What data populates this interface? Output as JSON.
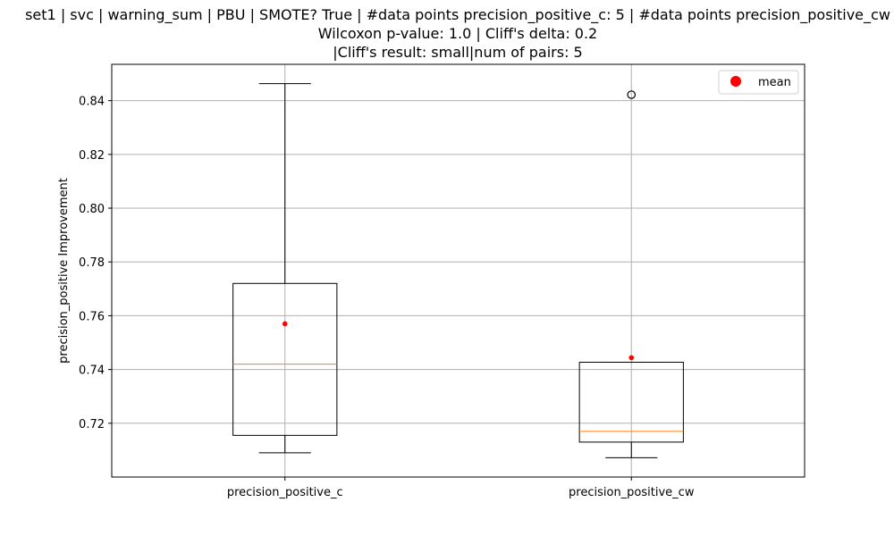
{
  "chart_data": {
    "type": "box",
    "title_lines": [
      "set1 | svc | warning_sum | PBU | SMOTE? True | #data points precision_positive_c: 5 | #data points precision_positive_cw",
      "Wilcoxon p-value: 1.0 | Cliff's delta: 0.2",
      "|Cliff's result: small|num of pairs: 5"
    ],
    "ylabel": "precision_positive Improvement",
    "xlabel": "",
    "ylim": [
      0.7,
      0.8535
    ],
    "yticks": [
      0.72,
      0.74,
      0.76,
      0.78,
      0.8,
      0.82,
      0.84
    ],
    "ytick_labels": [
      "0.72",
      "0.74",
      "0.76",
      "0.78",
      "0.80",
      "0.82",
      "0.84"
    ],
    "grid": true,
    "legend": {
      "placement": "top-right",
      "entries": [
        {
          "label": "mean",
          "color": "#ff0000",
          "marker": "circle"
        }
      ]
    },
    "boxes": [
      {
        "label": "precision_positive_c",
        "whisker_low": 0.709,
        "q1": 0.7155,
        "median": 0.742,
        "q3": 0.772,
        "whisker_high": 0.8463,
        "mean": 0.757,
        "outliers": []
      },
      {
        "label": "precision_positive_cw",
        "whisker_low": 0.7072,
        "q1": 0.713,
        "median": 0.717,
        "q3": 0.7427,
        "whisker_high": 0.7427,
        "mean": 0.7444,
        "outliers": [
          0.8422
        ]
      }
    ],
    "colors": {
      "box": "#000000",
      "median": "#ff7f0e",
      "mean": "#ff0000",
      "grid": "#b0b0b0"
    }
  }
}
